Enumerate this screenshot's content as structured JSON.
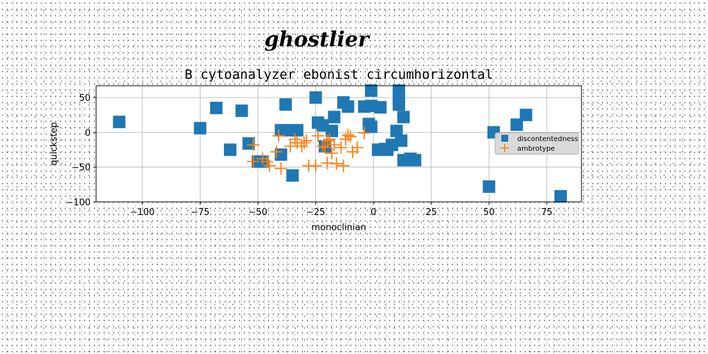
{
  "chart_data": {
    "type": "scatter",
    "suptitle": "ghostlier",
    "title": "B cytoanalyzer ebonist circumhorizontal",
    "xlabel": "monoclinian",
    "ylabel": "quickstep",
    "xlim": [
      -120,
      90
    ],
    "ylim": [
      -100,
      67
    ],
    "xticks": [
      -100,
      -75,
      -50,
      -25,
      0,
      25,
      50,
      75
    ],
    "yticks": [
      -100,
      -50,
      0,
      50
    ],
    "grid": true,
    "legend_position": "right",
    "series": [
      {
        "name": "discontentedness",
        "marker": "square",
        "color": "#1f77b4",
        "points": [
          [
            -110,
            15
          ],
          [
            -75,
            6
          ],
          [
            -68,
            35
          ],
          [
            -57,
            31
          ],
          [
            -62,
            -25
          ],
          [
            -54,
            -16
          ],
          [
            -50,
            -42
          ],
          [
            -48,
            -42
          ],
          [
            -40,
            -32
          ],
          [
            -38,
            40
          ],
          [
            -40,
            3
          ],
          [
            -36,
            3
          ],
          [
            -35,
            -62
          ],
          [
            -33,
            3
          ],
          [
            -25,
            50
          ],
          [
            -24,
            14
          ],
          [
            -22,
            10
          ],
          [
            -21,
            -20
          ],
          [
            -18,
            2
          ],
          [
            -17,
            22
          ],
          [
            -13,
            43
          ],
          [
            -11,
            37
          ],
          [
            -4,
            37
          ],
          [
            -2,
            12
          ],
          [
            -1,
            60
          ],
          [
            -1,
            38
          ],
          [
            -1,
            8
          ],
          [
            2,
            -25
          ],
          [
            3,
            36
          ],
          [
            5,
            -24
          ],
          [
            6,
            -25
          ],
          [
            8,
            -18
          ],
          [
            10,
            2
          ],
          [
            11,
            60
          ],
          [
            11,
            48
          ],
          [
            11,
            40
          ],
          [
            12,
            -12
          ],
          [
            13,
            22
          ],
          [
            13,
            -40
          ],
          [
            16,
            -38
          ],
          [
            18,
            -40
          ],
          [
            50,
            -78
          ],
          [
            52,
            0
          ],
          [
            62,
            11
          ],
          [
            66,
            25
          ],
          [
            81,
            -92
          ]
        ]
      },
      {
        "name": "ambrotype",
        "marker": "plus",
        "color": "#ff7f0e",
        "points": [
          [
            -52,
            -18
          ],
          [
            -52,
            -42
          ],
          [
            -48,
            -38
          ],
          [
            -46,
            -42
          ],
          [
            -45,
            -48
          ],
          [
            -42,
            -28
          ],
          [
            -41,
            -5
          ],
          [
            -40,
            -52
          ],
          [
            -36,
            -20
          ],
          [
            -34,
            -10
          ],
          [
            -33,
            -15
          ],
          [
            -31,
            -20
          ],
          [
            -30,
            -15
          ],
          [
            -29,
            -12
          ],
          [
            -28,
            -48
          ],
          [
            -25,
            -48
          ],
          [
            -24,
            -5
          ],
          [
            -22,
            -20
          ],
          [
            -21,
            -22
          ],
          [
            -20,
            -44
          ],
          [
            -20,
            -12
          ],
          [
            -19,
            -10
          ],
          [
            -18,
            -30
          ],
          [
            -17,
            -18
          ],
          [
            -16,
            -45
          ],
          [
            -14,
            -22
          ],
          [
            -13,
            -48
          ],
          [
            -12,
            -10
          ],
          [
            -11,
            -4
          ],
          [
            -10,
            -6
          ],
          [
            -9,
            -28
          ],
          [
            -7,
            -22
          ],
          [
            -4,
            -1
          ]
        ]
      }
    ]
  }
}
